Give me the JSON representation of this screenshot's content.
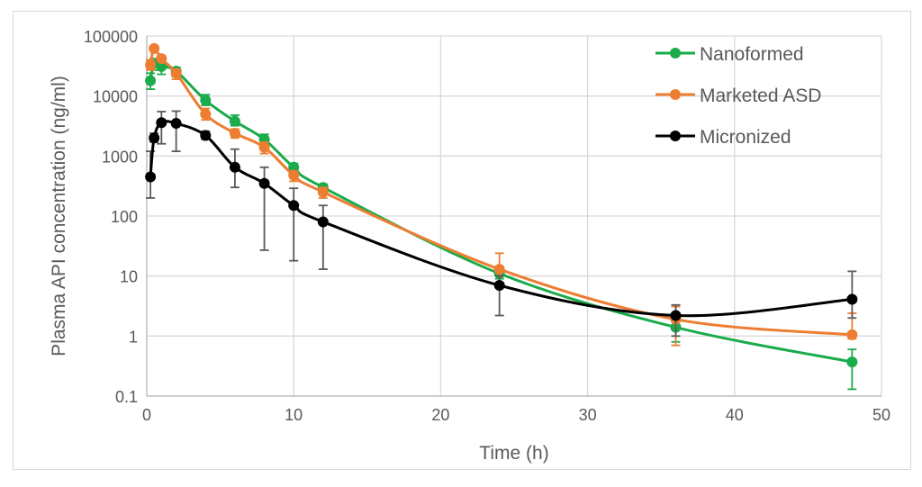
{
  "chart_data": {
    "type": "line",
    "title": "",
    "xlabel": "Time (h)",
    "ylabel": "Plasma API concentration (ng/ml)",
    "xlim": [
      0,
      50
    ],
    "ylim": [
      0.1,
      100000
    ],
    "yscale": "log",
    "xticks": [
      "0",
      "10",
      "20",
      "30",
      "40",
      "50"
    ],
    "yticks": [
      "0.1",
      "1",
      "10",
      "100",
      "1000",
      "10000",
      "100000"
    ],
    "grid": true,
    "legend_position": "top-right",
    "x": [
      0.25,
      0.5,
      1,
      2,
      4,
      6,
      8,
      10,
      12,
      24,
      36,
      48
    ],
    "series": [
      {
        "name": "Nanoformed",
        "color": "#1aab4b",
        "values": [
          18000,
          35000,
          31000,
          26000,
          8500,
          3800,
          1900,
          650,
          300,
          11,
          1.4,
          0.37
        ],
        "err_low": [
          13000,
          27000,
          23000,
          21000,
          7000,
          3200,
          1600,
          560,
          260,
          9,
          0.8,
          0.13
        ],
        "err_high": [
          24000,
          42000,
          38000,
          30000,
          10500,
          4800,
          2300,
          750,
          340,
          13,
          2.2,
          0.6
        ]
      },
      {
        "name": "Marketed ASD",
        "color": "#ed7d31",
        "values": [
          33000,
          62000,
          42000,
          24000,
          5000,
          2400,
          1400,
          480,
          250,
          13,
          1.9,
          1.05
        ],
        "err_low": [
          27000,
          55000,
          38000,
          19000,
          4000,
          2000,
          1100,
          380,
          200,
          10,
          0.7,
          0.9
        ],
        "err_high": [
          40000,
          68000,
          47000,
          28000,
          6200,
          2800,
          1700,
          560,
          300,
          24,
          3.1,
          2.4
        ]
      },
      {
        "name": "Micronized",
        "color": "#000000",
        "values": [
          450,
          2000,
          3600,
          3500,
          2200,
          650,
          350,
          150,
          80,
          7,
          2.2,
          4.1
        ],
        "err_low": [
          200,
          1700,
          1600,
          1200,
          1900,
          300,
          27,
          18,
          13,
          2.2,
          1.0,
          2.0
        ],
        "err_high": [
          1200,
          2400,
          5500,
          5600,
          2600,
          1300,
          650,
          290,
          150,
          10,
          3.3,
          12
        ]
      }
    ]
  }
}
